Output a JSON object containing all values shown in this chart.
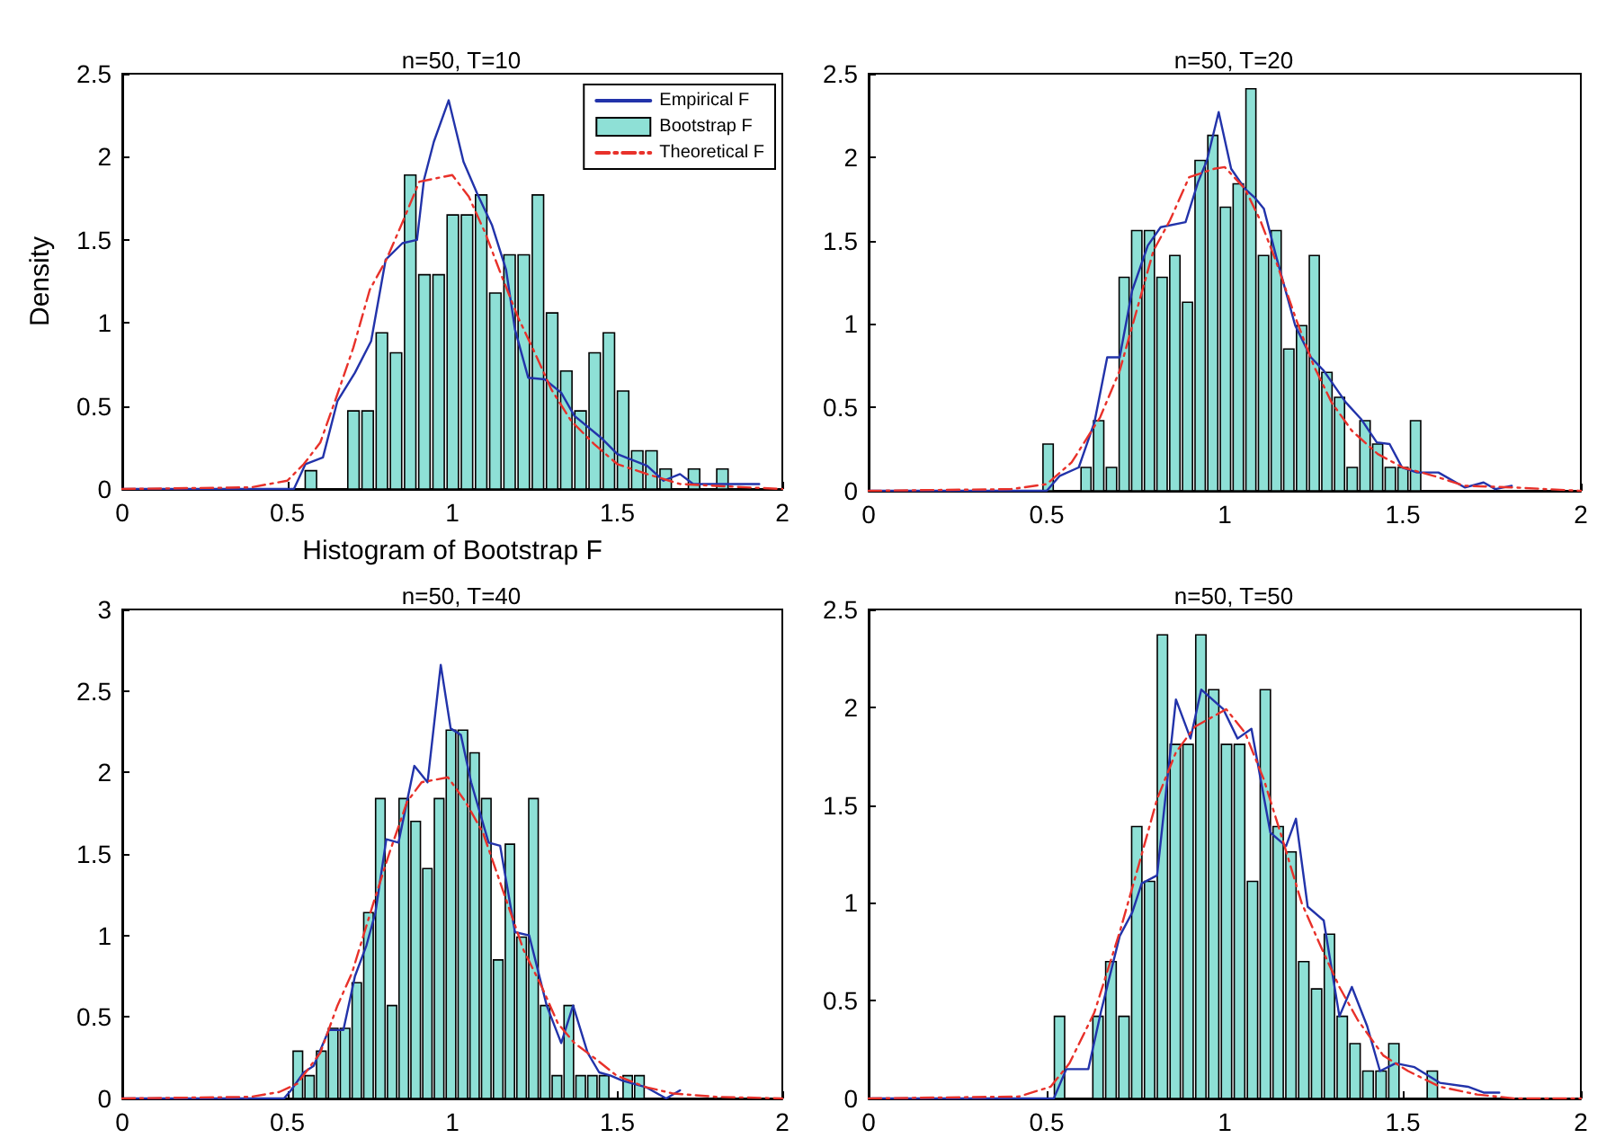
{
  "chart_data": [
    {
      "type": "histogram",
      "title": "n=50, T=10",
      "xlabel": "Histogram of Bootstrap F",
      "ylabel": "Density",
      "legend": "top right",
      "grid": false,
      "xlim": [
        0,
        2
      ],
      "xticks": [
        0,
        0.5,
        1,
        1.5,
        2
      ],
      "ylim": [
        0,
        2.5
      ],
      "yticks": [
        0,
        0.5,
        1,
        1.5,
        2,
        2.5
      ],
      "series": [
        {
          "name": "Empirical F",
          "type": "line",
          "color": "#2233aa",
          "line_style": "solid",
          "x": [
            0,
            0.52,
            0.555,
            0.608,
            0.652,
            0.705,
            0.754,
            0.798,
            0.849,
            0.893,
            0.914,
            0.944,
            0.989,
            1.034,
            1.075,
            1.12,
            1.163,
            1.19,
            1.23,
            1.28,
            1.33,
            1.37,
            1.45,
            1.5,
            1.59,
            1.64,
            1.69,
            1.73,
            1.85,
            1.93
          ],
          "values": [
            0,
            0,
            0.15,
            0.19,
            0.53,
            0.7,
            0.89,
            1.38,
            1.48,
            1.5,
            1.86,
            2.09,
            2.34,
            1.97,
            1.78,
            1.59,
            1.32,
            0.96,
            0.67,
            0.66,
            0.58,
            0.44,
            0.31,
            0.21,
            0.14,
            0.05,
            0.09,
            0.03,
            0.03,
            0.03
          ]
        },
        {
          "name": "Bootstrap F",
          "color": "#8ee0d6",
          "bins": [
            0.55,
            0.593,
            0.636,
            0.679,
            0.722,
            0.765,
            0.808,
            0.851,
            0.894,
            0.937,
            0.98,
            1.023,
            1.066,
            1.109,
            1.152,
            1.195,
            1.238,
            1.281,
            1.324,
            1.367,
            1.41,
            1.453,
            1.496,
            1.539,
            1.582,
            1.625,
            1.668,
            1.711,
            1.754,
            1.797,
            1.84
          ],
          "values": [
            0.11,
            0,
            0,
            0.47,
            0.47,
            0.94,
            0.82,
            1.89,
            1.29,
            1.29,
            1.65,
            1.65,
            1.77,
            1.18,
            1.41,
            1.41,
            1.77,
            1.06,
            0.71,
            0.47,
            0.82,
            0.94,
            0.59,
            0.23,
            0.23,
            0.12,
            0,
            0.12,
            0,
            0.12
          ]
        },
        {
          "name": "Theoretical F",
          "type": "line",
          "color": "#e8312a",
          "line_style": "dashed",
          "x": [
            0,
            0.39,
            0.5,
            0.55,
            0.6,
            0.65,
            0.7,
            0.75,
            0.8,
            0.85,
            0.9,
            1.0,
            1.05,
            1.1,
            1.15,
            1.2,
            1.25,
            1.3,
            1.36,
            1.43,
            1.5,
            1.59,
            1.69,
            1.89,
            2
          ],
          "values": [
            0,
            0.01,
            0.05,
            0.15,
            0.28,
            0.56,
            0.85,
            1.2,
            1.38,
            1.61,
            1.85,
            1.89,
            1.76,
            1.54,
            1.28,
            1.03,
            0.82,
            0.6,
            0.41,
            0.27,
            0.15,
            0.09,
            0.03,
            0.01,
            0
          ]
        }
      ]
    },
    {
      "type": "histogram",
      "title": "n=50, T=20",
      "grid": false,
      "xlim": [
        0,
        2
      ],
      "xticks": [
        0,
        0.5,
        1,
        1.5,
        2
      ],
      "ylim": [
        0,
        2.5
      ],
      "yticks": [
        0,
        0.5,
        1,
        1.5,
        2,
        2.5
      ],
      "series": [
        {
          "type": "line",
          "color": "#2233aa",
          "line_style": "solid",
          "x": [
            0,
            0.5,
            0.537,
            0.59,
            0.634,
            0.67,
            0.705,
            0.74,
            0.784,
            0.82,
            0.89,
            0.925,
            0.95,
            0.983,
            1.018,
            1.057,
            1.083,
            1.11,
            1.145,
            1.198,
            1.242,
            1.278,
            1.34,
            1.383,
            1.427,
            1.463,
            1.498,
            1.54,
            1.6,
            1.674,
            1.727,
            1.76,
            1.806
          ],
          "values": [
            0,
            0,
            0.09,
            0.14,
            0.41,
            0.8,
            0.8,
            1.2,
            1.47,
            1.58,
            1.61,
            1.85,
            1.98,
            2.27,
            1.93,
            1.81,
            1.76,
            1.69,
            1.4,
            0.99,
            0.8,
            0.72,
            0.53,
            0.43,
            0.29,
            0.28,
            0.14,
            0.11,
            0.11,
            0.02,
            0.05,
            0.01,
            0.03
          ]
        },
        {
          "color": "#8ee0d6",
          "bins": [
            0.486,
            0.522,
            0.557,
            0.593,
            0.628,
            0.664,
            0.7,
            0.735,
            0.771,
            0.806,
            0.842,
            0.878,
            0.913,
            0.949,
            0.984,
            1.02,
            1.056,
            1.091,
            1.127,
            1.162,
            1.198,
            1.234,
            1.269,
            1.305,
            1.34,
            1.376,
            1.412,
            1.447,
            1.483,
            1.518,
            1.554
          ],
          "values": [
            0.28,
            0,
            0,
            0.14,
            0.42,
            0.14,
            1.28,
            1.56,
            1.56,
            1.28,
            1.41,
            1.13,
            1.98,
            2.13,
            1.7,
            1.84,
            2.41,
            1.41,
            1.56,
            0.85,
            0.99,
            1.41,
            0.71,
            0.56,
            0.14,
            0.42,
            0.28,
            0.14,
            0.14,
            0.42
          ]
        },
        {
          "type": "line",
          "color": "#e8312a",
          "line_style": "dashed",
          "x": [
            0,
            0.4,
            0.5,
            0.57,
            0.65,
            0.705,
            0.75,
            0.8,
            0.846,
            0.9,
            0.97,
            1.0,
            1.057,
            1.1,
            1.145,
            1.2,
            1.25,
            1.3,
            1.357,
            1.43,
            1.5,
            1.586,
            1.674,
            1.81,
            2
          ],
          "values": [
            0,
            0.01,
            0.04,
            0.17,
            0.44,
            0.72,
            1.06,
            1.44,
            1.62,
            1.88,
            1.93,
            1.94,
            1.81,
            1.62,
            1.37,
            1.03,
            0.75,
            0.53,
            0.36,
            0.22,
            0.14,
            0.09,
            0.03,
            0.02,
            0
          ]
        }
      ]
    },
    {
      "type": "histogram",
      "title": "n=50, T=40",
      "grid": false,
      "xlim": [
        0,
        2
      ],
      "xticks": [
        0,
        0.5,
        1,
        1.5,
        2
      ],
      "ylim": [
        0,
        3
      ],
      "yticks": [
        0,
        0.5,
        1,
        1.5,
        2,
        2.5,
        3
      ],
      "series": [
        {
          "type": "line",
          "color": "#2233aa",
          "line_style": "solid",
          "x": [
            0,
            0.49,
            0.511,
            0.55,
            0.58,
            0.626,
            0.67,
            0.705,
            0.74,
            0.767,
            0.8,
            0.837,
            0.885,
            0.925,
            0.965,
            0.995,
            1.026,
            1.057,
            1.11,
            1.145,
            1.19,
            1.233,
            1.286,
            1.33,
            1.366,
            1.41,
            1.445,
            1.48,
            1.515,
            1.586,
            1.648,
            1.69
          ],
          "values": [
            0,
            0,
            0.05,
            0.16,
            0.2,
            0.42,
            0.42,
            0.75,
            0.94,
            1.14,
            1.59,
            1.57,
            2.04,
            1.94,
            2.66,
            2.27,
            2.23,
            1.94,
            1.57,
            1.55,
            1.02,
            1.0,
            0.57,
            0.34,
            0.57,
            0.28,
            0.16,
            0.14,
            0.11,
            0.07,
            0,
            0.05
          ]
        },
        {
          "color": "#8ee0d6",
          "bins": [
            0.514,
            0.55,
            0.585,
            0.621,
            0.657,
            0.693,
            0.728,
            0.764,
            0.8,
            0.835,
            0.871,
            0.907,
            0.942,
            0.978,
            1.014,
            1.05,
            1.085,
            1.121,
            1.157,
            1.192,
            1.228,
            1.264,
            1.299,
            1.335,
            1.371,
            1.407,
            1.442,
            1.478,
            1.514,
            1.549,
            1.585
          ],
          "values": [
            0.29,
            0.14,
            0.29,
            0.43,
            0.43,
            0.71,
            1.14,
            1.84,
            0.57,
            1.84,
            1.7,
            1.41,
            1.84,
            2.26,
            2.26,
            2.12,
            1.84,
            0.85,
            1.56,
            0.99,
            1.84,
            0.57,
            0.14,
            0.57,
            0.14,
            0.14,
            0.14,
            0,
            0.14,
            0.14
          ]
        },
        {
          "type": "line",
          "color": "#e8312a",
          "line_style": "dashed",
          "x": [
            0,
            0.39,
            0.476,
            0.53,
            0.6,
            0.652,
            0.696,
            0.758,
            0.81,
            0.863,
            0.907,
            0.987,
            1.04,
            1.093,
            1.163,
            1.216,
            1.27,
            1.32,
            1.37,
            1.436,
            1.498,
            1.586,
            1.67,
            1.8,
            2
          ],
          "values": [
            0,
            0.01,
            0.04,
            0.09,
            0.28,
            0.57,
            0.77,
            1.18,
            1.51,
            1.82,
            1.94,
            1.97,
            1.82,
            1.63,
            1.22,
            0.91,
            0.69,
            0.46,
            0.34,
            0.24,
            0.14,
            0.07,
            0.03,
            0.01,
            0
          ]
        }
      ]
    },
    {
      "type": "histogram",
      "title": "n=50, T=50",
      "grid": false,
      "xlim": [
        0,
        2
      ],
      "xticks": [
        0,
        0.5,
        1,
        1.5,
        2
      ],
      "ylim": [
        0,
        2.5
      ],
      "yticks": [
        0,
        0.5,
        1,
        1.5,
        2,
        2.5
      ],
      "series": [
        {
          "type": "line",
          "color": "#2233aa",
          "line_style": "solid",
          "x": [
            0,
            0.52,
            0.555,
            0.617,
            0.652,
            0.705,
            0.74,
            0.767,
            0.81,
            0.863,
            0.904,
            0.934,
            0.996,
            1.036,
            1.075,
            1.128,
            1.172,
            1.2,
            1.233,
            1.278,
            1.322,
            1.357,
            1.4,
            1.436,
            1.48,
            1.533,
            1.604,
            1.683,
            1.727,
            1.771
          ],
          "values": [
            0,
            0,
            0.15,
            0.15,
            0.44,
            0.83,
            0.95,
            1.1,
            1.14,
            2.04,
            1.84,
            2.09,
            1.99,
            1.84,
            1.89,
            1.36,
            1.29,
            1.43,
            0.98,
            0.91,
            0.42,
            0.57,
            0.37,
            0.14,
            0.18,
            0.16,
            0.08,
            0.06,
            0.03,
            0.03
          ]
        },
        {
          "color": "#8ee0d6",
          "bins": [
            0.518,
            0.554,
            0.59,
            0.626,
            0.662,
            0.699,
            0.735,
            0.771,
            0.807,
            0.843,
            0.879,
            0.915,
            0.951,
            0.987,
            1.023,
            1.06,
            1.096,
            1.132,
            1.168,
            1.204,
            1.24,
            1.276,
            1.312,
            1.348,
            1.384,
            1.421,
            1.457,
            1.493,
            1.529,
            1.565,
            1.601
          ],
          "values": [
            0.42,
            0,
            0,
            0.42,
            0.7,
            0.42,
            1.39,
            1.11,
            2.37,
            1.81,
            1.81,
            2.37,
            2.09,
            1.81,
            1.81,
            1.11,
            2.09,
            1.39,
            1.26,
            0.7,
            0.56,
            0.84,
            0.42,
            0.28,
            0.14,
            0.14,
            0.28,
            0,
            0,
            0.14
          ]
        },
        {
          "type": "line",
          "color": "#e8312a",
          "line_style": "dashed",
          "x": [
            0,
            0.423,
            0.511,
            0.564,
            0.634,
            0.705,
            0.758,
            0.81,
            0.863,
            0.916,
            1.004,
            1.057,
            1.11,
            1.163,
            1.216,
            1.269,
            1.322,
            1.374,
            1.445,
            1.515,
            1.604,
            1.709,
            1.815,
            2
          ],
          "values": [
            0,
            0.01,
            0.06,
            0.18,
            0.44,
            0.85,
            1.19,
            1.53,
            1.77,
            1.9,
            1.99,
            1.87,
            1.63,
            1.32,
            1.0,
            0.78,
            0.57,
            0.4,
            0.22,
            0.14,
            0.06,
            0.02,
            0,
            0
          ]
        }
      ]
    }
  ]
}
